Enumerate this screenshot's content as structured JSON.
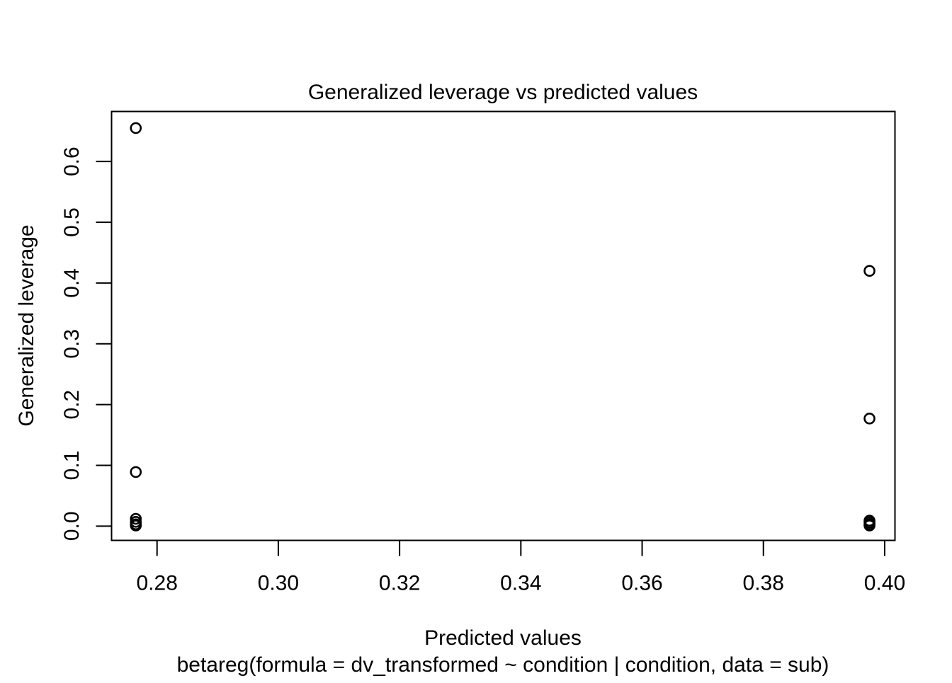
{
  "chart_data": {
    "type": "scatter",
    "title": "Generalized leverage vs predicted values",
    "xlabel": "Predicted values",
    "sublabel": "betareg(formula = dv_transformed ~ condition | condition, data = sub)",
    "ylabel": "Generalized leverage",
    "xlim": [
      0.2725,
      0.4017
    ],
    "ylim": [
      -0.0235,
      0.6823
    ],
    "x_ticks": [
      0.28,
      0.3,
      0.32,
      0.34,
      0.36,
      0.38,
      0.4
    ],
    "x_tick_labels": [
      "0.28",
      "0.30",
      "0.32",
      "0.34",
      "0.36",
      "0.38",
      "0.40"
    ],
    "y_ticks": [
      0.0,
      0.1,
      0.2,
      0.3,
      0.4,
      0.5,
      0.6
    ],
    "y_tick_labels": [
      "0.0",
      "0.1",
      "0.2",
      "0.3",
      "0.4",
      "0.5",
      "0.6"
    ],
    "grid": false,
    "marker": "open-circle",
    "points": [
      {
        "x": 0.2765,
        "y": 0.655
      },
      {
        "x": 0.2765,
        "y": 0.089
      },
      {
        "x": 0.2765,
        "y": 0.012
      },
      {
        "x": 0.2765,
        "y": 0.007
      },
      {
        "x": 0.2765,
        "y": 0.003
      },
      {
        "x": 0.2765,
        "y": 0.001
      },
      {
        "x": 0.3975,
        "y": 0.42
      },
      {
        "x": 0.3975,
        "y": 0.177
      },
      {
        "x": 0.3975,
        "y": 0.009
      },
      {
        "x": 0.3975,
        "y": 0.006
      },
      {
        "x": 0.3975,
        "y": 0.003
      },
      {
        "x": 0.3975,
        "y": 0.001
      }
    ],
    "colors": {
      "marker": "#000000",
      "axis": "#000000",
      "background": "#ffffff"
    }
  }
}
